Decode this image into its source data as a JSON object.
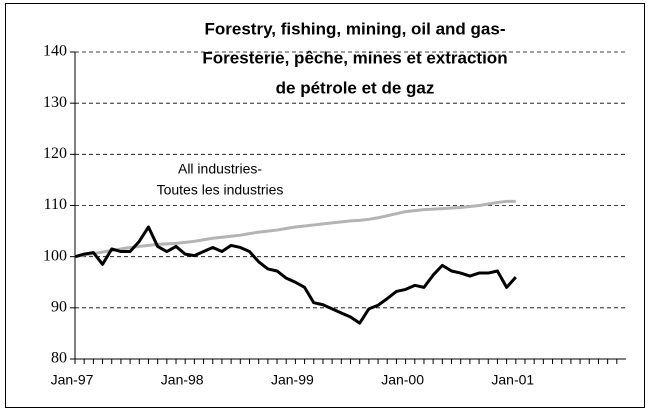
{
  "chart_data": {
    "type": "line",
    "title": [
      "Forestry, fishing, mining, oil and gas-",
      "Foresterie, pêche, mines et extraction",
      "de pétrole et de gaz"
    ],
    "annotation": [
      "All industries-",
      "Toutes les industries"
    ],
    "categories": [
      "Jan-97",
      null,
      null,
      null,
      null,
      null,
      null,
      null,
      null,
      null,
      null,
      null,
      "Jan-98",
      null,
      null,
      null,
      null,
      null,
      null,
      null,
      null,
      null,
      null,
      null,
      "Jan-99",
      null,
      null,
      null,
      null,
      null,
      null,
      null,
      null,
      null,
      null,
      null,
      "Jan-00",
      null,
      null,
      null,
      null,
      null,
      null,
      null,
      null,
      null,
      null,
      null,
      "Jan-01",
      null,
      null,
      null,
      null,
      null,
      null,
      null,
      null,
      null,
      null,
      null
    ],
    "series": [
      {
        "color": "#b4b4b4",
        "values": [
          100,
          100.3,
          100.6,
          100.9,
          101.2,
          101.5,
          101.8,
          102,
          102.2,
          102.4,
          102.5,
          102.6,
          102.8,
          103,
          103.3,
          103.6,
          103.8,
          104,
          104.2,
          104.5,
          104.8,
          105,
          105.2,
          105.5,
          105.8,
          106,
          106.2,
          106.4,
          106.6,
          106.8,
          107,
          107.1,
          107.3,
          107.6,
          108,
          108.4,
          108.8,
          109,
          109.2,
          109.3,
          109.4,
          109.5,
          109.6,
          109.8,
          110,
          110.3,
          110.6,
          110.8,
          110.8,
          null,
          null,
          null,
          null,
          null,
          null,
          null,
          null,
          null,
          null,
          null
        ]
      },
      {
        "color": "#000000",
        "values": [
          100,
          100.5,
          100.8,
          98.5,
          101.5,
          101,
          101,
          103,
          105.8,
          102,
          101,
          102,
          100.5,
          100.2,
          101,
          101.8,
          101,
          102.2,
          101.8,
          101,
          99,
          97.6,
          97.2,
          95.8,
          95,
          94,
          91,
          90.6,
          89.8,
          89,
          88.2,
          87,
          89.8,
          90.5,
          91.8,
          93.2,
          93.6,
          94.4,
          94,
          96.4,
          98.3,
          97.2,
          96.8,
          96.2,
          96.8,
          96.8,
          97.2,
          94,
          96,
          null,
          null,
          null,
          null,
          null,
          null,
          null,
          null,
          null,
          null,
          null
        ]
      }
    ],
    "ylim": [
      80,
      140
    ],
    "yticks": [
      80,
      90,
      100,
      110,
      120,
      130,
      140
    ],
    "grid": true
  }
}
